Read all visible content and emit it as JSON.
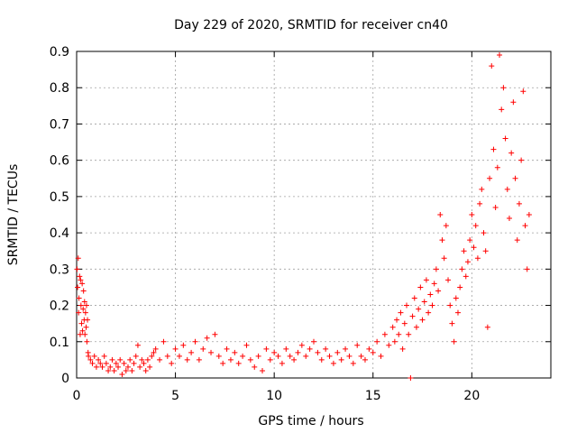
{
  "chart_data": {
    "type": "scatter",
    "title": "Day 229 of 2020, SRMTID for receiver cn40",
    "xlabel": "GPS time / hours",
    "ylabel": "SRMTID / TECUs",
    "xlim": [
      0,
      24
    ],
    "ylim": [
      0,
      0.9
    ],
    "xticks": [
      0,
      5,
      10,
      15,
      20
    ],
    "yticks": [
      0,
      0.1,
      0.2,
      0.3,
      0.4,
      0.5,
      0.6,
      0.7,
      0.8,
      0.9
    ],
    "grid": true,
    "marker": "+",
    "series": [
      {
        "name": "SRMTID",
        "color": "#ff0000",
        "points": [
          [
            0.02,
            0.3
          ],
          [
            0.05,
            0.25
          ],
          [
            0.08,
            0.33
          ],
          [
            0.1,
            0.18
          ],
          [
            0.12,
            0.22
          ],
          [
            0.15,
            0.28
          ],
          [
            0.18,
            0.12
          ],
          [
            0.2,
            0.27
          ],
          [
            0.22,
            0.2
          ],
          [
            0.25,
            0.15
          ],
          [
            0.28,
            0.26
          ],
          [
            0.3,
            0.13
          ],
          [
            0.33,
            0.19
          ],
          [
            0.35,
            0.24
          ],
          [
            0.38,
            0.16
          ],
          [
            0.4,
            0.21
          ],
          [
            0.42,
            0.12
          ],
          [
            0.45,
            0.18
          ],
          [
            0.48,
            0.14
          ],
          [
            0.5,
            0.2
          ],
          [
            0.52,
            0.1
          ],
          [
            0.55,
            0.16
          ],
          [
            0.58,
            0.07
          ],
          [
            0.6,
            0.06
          ],
          [
            0.7,
            0.05
          ],
          [
            0.8,
            0.04
          ],
          [
            0.9,
            0.06
          ],
          [
            1.0,
            0.03
          ],
          [
            1.1,
            0.05
          ],
          [
            1.2,
            0.04
          ],
          [
            1.3,
            0.03
          ],
          [
            1.4,
            0.06
          ],
          [
            1.5,
            0.04
          ],
          [
            1.6,
            0.02
          ],
          [
            1.7,
            0.03
          ],
          [
            1.8,
            0.05
          ],
          [
            1.9,
            0.02
          ],
          [
            2.0,
            0.04
          ],
          [
            2.1,
            0.03
          ],
          [
            2.2,
            0.05
          ],
          [
            2.3,
            0.01
          ],
          [
            2.4,
            0.04
          ],
          [
            2.5,
            0.02
          ],
          [
            2.6,
            0.03
          ],
          [
            2.7,
            0.05
          ],
          [
            2.8,
            0.02
          ],
          [
            2.9,
            0.04
          ],
          [
            3.0,
            0.06
          ],
          [
            3.1,
            0.09
          ],
          [
            3.2,
            0.03
          ],
          [
            3.3,
            0.05
          ],
          [
            3.4,
            0.04
          ],
          [
            3.5,
            0.02
          ],
          [
            3.6,
            0.05
          ],
          [
            3.7,
            0.03
          ],
          [
            3.8,
            0.06
          ],
          [
            3.9,
            0.07
          ],
          [
            4.0,
            0.08
          ],
          [
            4.2,
            0.05
          ],
          [
            4.4,
            0.1
          ],
          [
            4.6,
            0.06
          ],
          [
            4.8,
            0.04
          ],
          [
            5.0,
            0.08
          ],
          [
            5.2,
            0.06
          ],
          [
            5.4,
            0.09
          ],
          [
            5.6,
            0.05
          ],
          [
            5.8,
            0.07
          ],
          [
            6.0,
            0.1
          ],
          [
            6.2,
            0.05
          ],
          [
            6.4,
            0.08
          ],
          [
            6.6,
            0.11
          ],
          [
            6.8,
            0.07
          ],
          [
            7.0,
            0.12
          ],
          [
            7.2,
            0.06
          ],
          [
            7.4,
            0.04
          ],
          [
            7.6,
            0.08
          ],
          [
            7.8,
            0.05
          ],
          [
            8.0,
            0.07
          ],
          [
            8.2,
            0.04
          ],
          [
            8.4,
            0.06
          ],
          [
            8.6,
            0.09
          ],
          [
            8.8,
            0.05
          ],
          [
            9.0,
            0.03
          ],
          [
            9.2,
            0.06
          ],
          [
            9.4,
            0.02
          ],
          [
            9.6,
            0.08
          ],
          [
            9.8,
            0.05
          ],
          [
            10.0,
            0.07
          ],
          [
            10.2,
            0.06
          ],
          [
            10.4,
            0.04
          ],
          [
            10.6,
            0.08
          ],
          [
            10.8,
            0.06
          ],
          [
            11.0,
            0.05
          ],
          [
            11.2,
            0.07
          ],
          [
            11.4,
            0.09
          ],
          [
            11.6,
            0.06
          ],
          [
            11.8,
            0.08
          ],
          [
            12.0,
            0.1
          ],
          [
            12.2,
            0.07
          ],
          [
            12.4,
            0.05
          ],
          [
            12.6,
            0.08
          ],
          [
            12.8,
            0.06
          ],
          [
            13.0,
            0.04
          ],
          [
            13.2,
            0.07
          ],
          [
            13.4,
            0.05
          ],
          [
            13.6,
            0.08
          ],
          [
            13.8,
            0.06
          ],
          [
            14.0,
            0.04
          ],
          [
            14.2,
            0.09
          ],
          [
            14.4,
            0.06
          ],
          [
            14.6,
            0.05
          ],
          [
            14.8,
            0.08
          ],
          [
            15.0,
            0.07
          ],
          [
            15.2,
            0.1
          ],
          [
            15.4,
            0.06
          ],
          [
            15.6,
            0.12
          ],
          [
            15.8,
            0.09
          ],
          [
            16.0,
            0.14
          ],
          [
            16.1,
            0.1
          ],
          [
            16.2,
            0.16
          ],
          [
            16.3,
            0.12
          ],
          [
            16.4,
            0.18
          ],
          [
            16.5,
            0.08
          ],
          [
            16.6,
            0.15
          ],
          [
            16.7,
            0.2
          ],
          [
            16.8,
            0.12
          ],
          [
            16.9,
            0.0
          ],
          [
            17.0,
            0.17
          ],
          [
            17.1,
            0.22
          ],
          [
            17.2,
            0.14
          ],
          [
            17.3,
            0.19
          ],
          [
            17.4,
            0.25
          ],
          [
            17.5,
            0.16
          ],
          [
            17.6,
            0.21
          ],
          [
            17.7,
            0.27
          ],
          [
            17.8,
            0.18
          ],
          [
            17.9,
            0.23
          ],
          [
            18.0,
            0.2
          ],
          [
            18.1,
            0.26
          ],
          [
            18.2,
            0.3
          ],
          [
            18.3,
            0.24
          ],
          [
            18.4,
            0.45
          ],
          [
            18.5,
            0.38
          ],
          [
            18.6,
            0.33
          ],
          [
            18.7,
            0.42
          ],
          [
            18.8,
            0.27
          ],
          [
            18.9,
            0.2
          ],
          [
            19.0,
            0.15
          ],
          [
            19.1,
            0.1
          ],
          [
            19.2,
            0.22
          ],
          [
            19.3,
            0.18
          ],
          [
            19.4,
            0.25
          ],
          [
            19.5,
            0.3
          ],
          [
            19.6,
            0.35
          ],
          [
            19.7,
            0.28
          ],
          [
            19.8,
            0.32
          ],
          [
            19.9,
            0.38
          ],
          [
            20.0,
            0.45
          ],
          [
            20.1,
            0.36
          ],
          [
            20.2,
            0.42
          ],
          [
            20.3,
            0.33
          ],
          [
            20.4,
            0.48
          ],
          [
            20.5,
            0.52
          ],
          [
            20.6,
            0.4
          ],
          [
            20.7,
            0.35
          ],
          [
            20.8,
            0.14
          ],
          [
            20.9,
            0.55
          ],
          [
            21.0,
            0.86
          ],
          [
            21.1,
            0.63
          ],
          [
            21.2,
            0.47
          ],
          [
            21.3,
            0.58
          ],
          [
            21.4,
            0.89
          ],
          [
            21.5,
            0.74
          ],
          [
            21.6,
            0.8
          ],
          [
            21.7,
            0.66
          ],
          [
            21.8,
            0.52
          ],
          [
            21.9,
            0.44
          ],
          [
            22.0,
            0.62
          ],
          [
            22.1,
            0.76
          ],
          [
            22.2,
            0.55
          ],
          [
            22.3,
            0.38
          ],
          [
            22.4,
            0.48
          ],
          [
            22.5,
            0.6
          ],
          [
            22.6,
            0.79
          ],
          [
            22.7,
            0.42
          ],
          [
            22.8,
            0.3
          ],
          [
            22.9,
            0.45
          ]
        ]
      }
    ]
  }
}
